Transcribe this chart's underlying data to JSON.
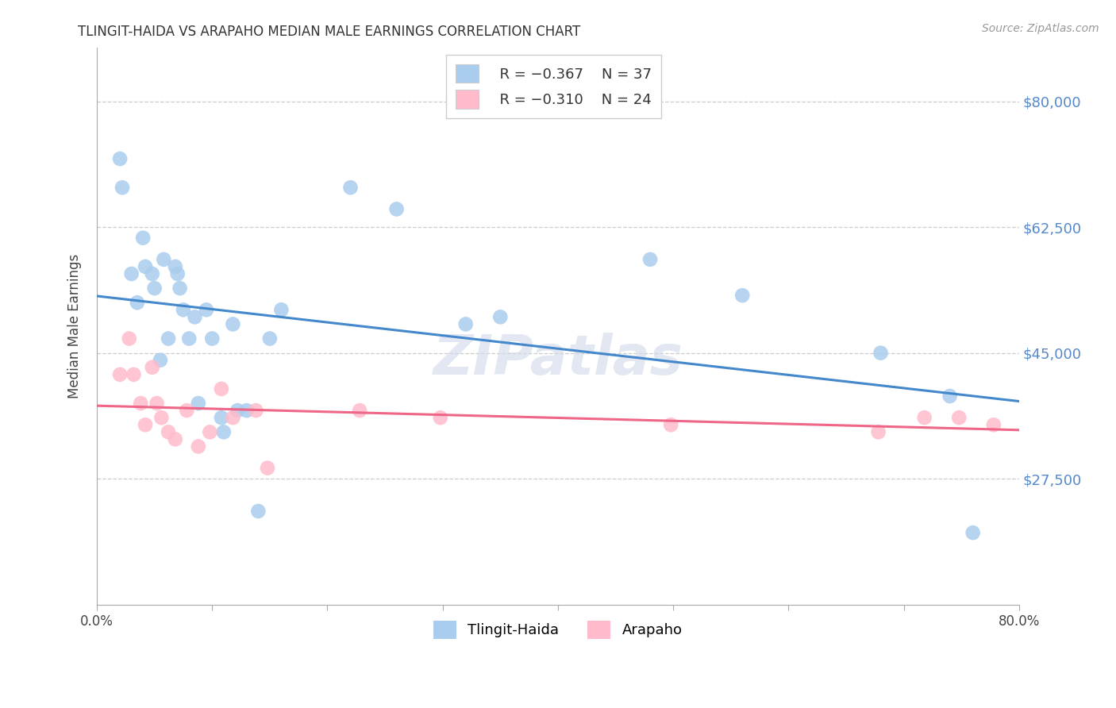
{
  "title": "TLINGIT-HAIDA VS ARAPAHO MEDIAN MALE EARNINGS CORRELATION CHART",
  "source": "Source: ZipAtlas.com",
  "ylabel": "Median Male Earnings",
  "xlim": [
    0.0,
    0.8
  ],
  "ylim": [
    10000,
    87500
  ],
  "yticks": [
    27500,
    45000,
    62500,
    80000
  ],
  "ytick_labels": [
    "$27,500",
    "$45,000",
    "$62,500",
    "$80,000"
  ],
  "xticks": [
    0.0,
    0.1,
    0.2,
    0.3,
    0.4,
    0.5,
    0.6,
    0.7,
    0.8
  ],
  "xtick_labels": [
    "0.0%",
    "",
    "",
    "",
    "",
    "",
    "",
    "",
    "80.0%"
  ],
  "legend1_r": "R = −0.367",
  "legend1_n": "N = 37",
  "legend2_r": "R = −0.310",
  "legend2_n": "N = 24",
  "legend1_label": "Tlingit-Haida",
  "legend2_label": "Arapaho",
  "blue_color": "#AACCEE",
  "pink_color": "#FFBBCC",
  "blue_line_color": "#4488CC",
  "pink_line_color": "#EE6688",
  "watermark": "ZIPatlas",
  "tlingit_x": [
    0.02,
    0.022,
    0.03,
    0.035,
    0.04,
    0.042,
    0.048,
    0.05,
    0.055,
    0.058,
    0.062,
    0.068,
    0.07,
    0.072,
    0.075,
    0.08,
    0.085,
    0.088,
    0.095,
    0.1,
    0.108,
    0.11,
    0.118,
    0.122,
    0.13,
    0.14,
    0.15,
    0.16,
    0.22,
    0.26,
    0.32,
    0.35,
    0.48,
    0.56,
    0.68,
    0.74,
    0.76
  ],
  "tlingit_y": [
    72000,
    68000,
    56000,
    52000,
    61000,
    57000,
    56000,
    54000,
    44000,
    58000,
    47000,
    57000,
    56000,
    54000,
    51000,
    47000,
    50000,
    38000,
    51000,
    47000,
    36000,
    34000,
    49000,
    37000,
    37000,
    23000,
    47000,
    51000,
    68000,
    65000,
    49000,
    50000,
    58000,
    53000,
    45000,
    39000,
    20000
  ],
  "arapaho_x": [
    0.02,
    0.028,
    0.032,
    0.038,
    0.042,
    0.048,
    0.052,
    0.056,
    0.062,
    0.068,
    0.078,
    0.088,
    0.098,
    0.108,
    0.118,
    0.138,
    0.148,
    0.228,
    0.298,
    0.498,
    0.678,
    0.718,
    0.748,
    0.778
  ],
  "arapaho_y": [
    42000,
    47000,
    42000,
    38000,
    35000,
    43000,
    38000,
    36000,
    34000,
    33000,
    37000,
    32000,
    34000,
    40000,
    36000,
    37000,
    29000,
    37000,
    36000,
    35000,
    34000,
    36000,
    36000,
    35000
  ]
}
